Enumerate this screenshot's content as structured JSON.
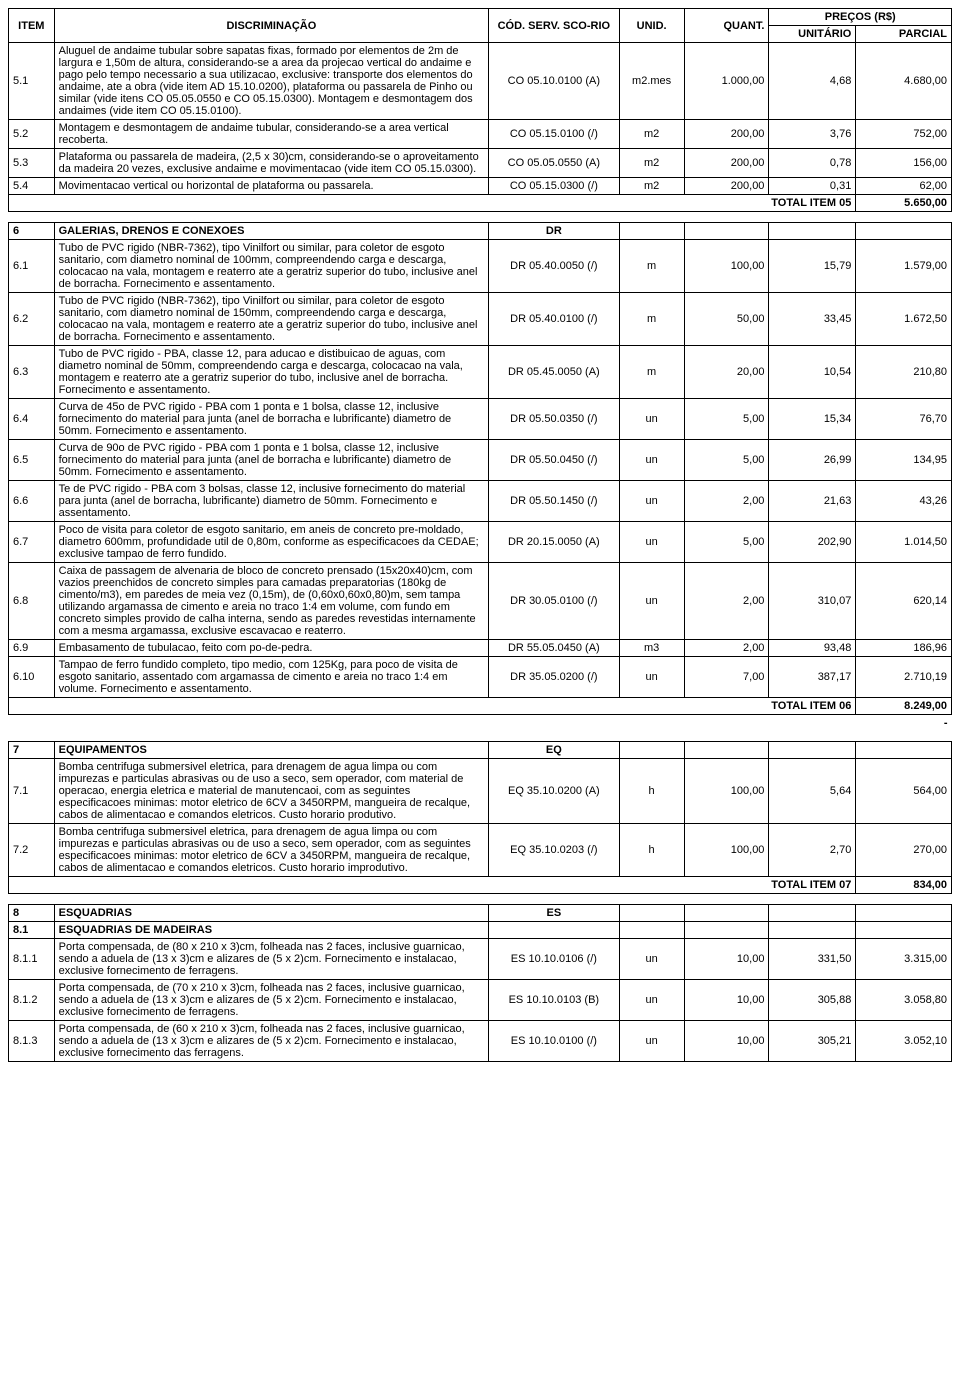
{
  "headers": {
    "item": "ITEM",
    "disc": "DISCRIMINAÇÃO",
    "cod": "CÓD. SERV. SCO-RIO",
    "unid": "UNID.",
    "quant": "QUANT.",
    "precos": "PREÇOS (R$)",
    "unit": "UNITÁRIO",
    "parc": "PARCIAL"
  },
  "group5": {
    "rows": [
      {
        "item": "5.1",
        "disc": "Aluguel de andaime tubular sobre sapatas fixas, formado por elementos de 2m de largura e 1,50m de altura, considerando-se a area da projecao vertical do andaime e pago pelo tempo necessario a sua utilizacao, exclusive: transporte dos elementos do andaime, ate a obra (vide item AD 15.10.0200), plataforma ou passarela de Pinho ou similar (vide itens CO 05.05.0550 e CO 05.15.0300). Montagem e desmontagem dos andaimes (vide item CO 05.15.0100).",
        "cod": "CO 05.10.0100 (A)",
        "unid": "m2.mes",
        "quant": "1.000,00",
        "unit": "4,68",
        "parc": "4.680,00"
      },
      {
        "item": "5.2",
        "disc": "Montagem e desmontagem de andaime tubular, considerando-se a area vertical recoberta.",
        "cod": "CO 05.15.0100 (/)",
        "unid": "m2",
        "quant": "200,00",
        "unit": "3,76",
        "parc": "752,00"
      },
      {
        "item": "5.3",
        "disc": "Plataforma ou passarela de madeira, (2,5 x 30)cm, considerando-se o aproveitamento da madeira 20 vezes, exclusive andaime e movimentacao (vide item CO 05.15.0300).",
        "cod": "CO 05.05.0550 (A)",
        "unid": "m2",
        "quant": "200,00",
        "unit": "0,78",
        "parc": "156,00"
      },
      {
        "item": "5.4",
        "disc": "Movimentacao vertical ou horizontal de plataforma ou passarela.",
        "cod": "CO 05.15.0300 (/)",
        "unid": "m2",
        "quant": "200,00",
        "unit": "0,31",
        "parc": "62,00"
      }
    ],
    "total_label": "TOTAL ITEM 05",
    "total": "5.650,00"
  },
  "group6": {
    "header": {
      "item": "6",
      "disc": "GALERIAS, DRENOS E CONEXOES",
      "cod": "DR"
    },
    "rows": [
      {
        "item": "6.1",
        "disc": "Tubo de PVC rigido (NBR-7362), tipo Vinilfort ou similar, para coletor de esgoto sanitario, com diametro nominal de 100mm, compreendendo carga e descarga, colocacao na vala, montagem e reaterro ate a geratriz superior do tubo, inclusive anel de borracha. Fornecimento e assentamento.",
        "cod": "DR 05.40.0050 (/)",
        "unid": "m",
        "quant": "100,00",
        "unit": "15,79",
        "parc": "1.579,00"
      },
      {
        "item": "6.2",
        "disc": "Tubo de PVC rigido (NBR-7362), tipo Vinilfort ou similar, para coletor de esgoto sanitario, com diametro nominal de 150mm, compreendendo carga e descarga, colocacao na vala, montagem e reaterro ate a geratriz superior do tubo, inclusive anel de borracha. Fornecimento e assentamento.",
        "cod": "DR 05.40.0100 (/)",
        "unid": "m",
        "quant": "50,00",
        "unit": "33,45",
        "parc": "1.672,50"
      },
      {
        "item": "6.3",
        "disc": "Tubo de PVC rigido - PBA, classe 12, para aducao e distibuicao de aguas, com diametro nominal de 50mm, compreendendo carga e descarga, colocacao na vala, montagem e reaterro ate a geratriz superior do tubo, inclusive anel de borracha. Fornecimento e assentamento.",
        "cod": "DR 05.45.0050 (A)",
        "unid": "m",
        "quant": "20,00",
        "unit": "10,54",
        "parc": "210,80"
      },
      {
        "item": "6.4",
        "disc": "Curva de 45o de PVC rigido - PBA com 1 ponta e 1 bolsa, classe 12, inclusive fornecimento do material para junta (anel de borracha e lubrificante) diametro de 50mm. Fornecimento e assentamento.",
        "cod": "DR 05.50.0350 (/)",
        "unid": "un",
        "quant": "5,00",
        "unit": "15,34",
        "parc": "76,70"
      },
      {
        "item": "6.5",
        "disc": "Curva de 90o de PVC rigido - PBA com 1 ponta e 1 bolsa, classe 12, inclusive fornecimento do material para junta (anel de borracha e lubrificante) diametro de 50mm. Fornecimento e assentamento.",
        "cod": "DR 05.50.0450 (/)",
        "unid": "un",
        "quant": "5,00",
        "unit": "26,99",
        "parc": "134,95"
      },
      {
        "item": "6.6",
        "disc": "Te de PVC rigido - PBA com 3 bolsas, classe 12, inclusive fornecimento do material para junta (anel de borracha, lubrificante) diametro de 50mm. Fornecimento e assentamento.",
        "cod": "DR 05.50.1450 (/)",
        "unid": "un",
        "quant": "2,00",
        "unit": "21,63",
        "parc": "43,26"
      },
      {
        "item": "6.7",
        "disc": "Poco de visita para coletor de esgoto sanitario, em aneis de concreto pre-moldado, diametro 600mm, profundidade util de 0,80m, conforme as especificacoes da CEDAE; exclusive tampao de ferro fundido.",
        "cod": "DR 20.15.0050 (A)",
        "unid": "un",
        "quant": "5,00",
        "unit": "202,90",
        "parc": "1.014,50"
      },
      {
        "item": "6.8",
        "disc": "Caixa de passagem de alvenaria de bloco de concreto prensado (15x20x40)cm, com vazios preenchidos de concreto simples para camadas preparatorias (180kg de cimento/m3), em paredes de meia vez (0,15m), de (0,60x0,60x0,80)m, sem tampa utilizando argamassa de cimento e areia no traco 1:4 em volume, com fundo em concreto simples provido de calha interna, sendo as paredes revestidas internamente com a mesma argamassa, exclusive escavacao e reaterro.",
        "cod": "DR 30.05.0100 (/)",
        "unid": "un",
        "quant": "2,00",
        "unit": "310,07",
        "parc": "620,14"
      },
      {
        "item": "6.9",
        "disc": "Embasamento de tubulacao, feito com po-de-pedra.",
        "cod": "DR 55.05.0450 (A)",
        "unid": "m3",
        "quant": "2,00",
        "unit": "93,48",
        "parc": "186,96"
      },
      {
        "item": "6.10",
        "disc": "Tampao de ferro fundido completo, tipo medio, com 125Kg, para poco de visita de esgoto sanitario, assentado com argamassa de cimento e areia no traco 1:4 em volume. Fornecimento e assentamento.",
        "cod": "DR 35.05.0200 (/)",
        "unid": "un",
        "quant": "7,00",
        "unit": "387,17",
        "parc": "2.710,19"
      }
    ],
    "total_label": "TOTAL ITEM 06",
    "total": "8.249,00",
    "dash": "-"
  },
  "group7": {
    "header": {
      "item": "7",
      "disc": "EQUIPAMENTOS",
      "cod": "EQ"
    },
    "rows": [
      {
        "item": "7.1",
        "disc": "Bomba centrifuga submersivel eletrica, para drenagem de agua limpa ou com impurezas e particulas abrasivas ou de uso a seco, sem operador, com material de operacao, energia eletrica e material de manutencaoi, com as seguintes especificacoes minimas: motor eletrico de 6CV a 3450RPM, mangueira de recalque, cabos de alimentacao e comandos eletricos. Custo horario produtivo.",
        "cod": "EQ 35.10.0200 (A)",
        "unid": "h",
        "quant": "100,00",
        "unit": "5,64",
        "parc": "564,00"
      },
      {
        "item": "7.2",
        "disc": "Bomba centrifuga submersivel eletrica, para drenagem de agua limpa ou com impurezas e particulas abrasivas ou de uso a seco, sem operador, com as seguintes especificacoes minimas: motor eletrico de 6CV a 3450RPM, mangueira de recalque, cabos de alimentacao e comandos eletricos. Custo horario improdutivo.",
        "cod": "EQ 35.10.0203 (/)",
        "unid": "h",
        "quant": "100,00",
        "unit": "2,70",
        "parc": "270,00"
      }
    ],
    "total_label": "TOTAL ITEM 07",
    "total": "834,00"
  },
  "group8": {
    "header": {
      "item": "8",
      "disc": "ESQUADRIAS",
      "cod": "ES"
    },
    "subheader": {
      "item": "8.1",
      "disc": "ESQUADRIAS DE MADEIRAS"
    },
    "rows": [
      {
        "item": "8.1.1",
        "disc": "Porta compensada, de (80 x 210 x 3)cm, folheada nas 2 faces, inclusive guarnicao, sendo a aduela de (13 x 3)cm e alizares de (5 x 2)cm. Fornecimento e instalacao, exclusive fornecimento de ferragens.",
        "cod": "ES 10.10.0106 (/)",
        "unid": "un",
        "quant": "10,00",
        "unit": "331,50",
        "parc": "3.315,00"
      },
      {
        "item": "8.1.2",
        "disc": "Porta compensada, de (70 x 210 x 3)cm, folheada nas 2 faces, inclusive guarnicao, sendo a aduela de (13 x 3)cm e alizares de (5 x 2)cm. Fornecimento e instalacao, exclusive fornecimento de ferragens.",
        "cod": "ES 10.10.0103 (B)",
        "unid": "un",
        "quant": "10,00",
        "unit": "305,88",
        "parc": "3.058,80"
      },
      {
        "item": "8.1.3",
        "disc": "Porta compensada, de (60 x 210 x 3)cm, folheada nas 2 faces, inclusive guarnicao, sendo a aduela de (13 x 3)cm e alizares de (5 x 2)cm. Fornecimento e instalacao, exclusive fornecimento das ferragens.",
        "cod": "ES 10.10.0100 (/)",
        "unid": "un",
        "quant": "10,00",
        "unit": "305,21",
        "parc": "3.052,10"
      }
    ]
  }
}
